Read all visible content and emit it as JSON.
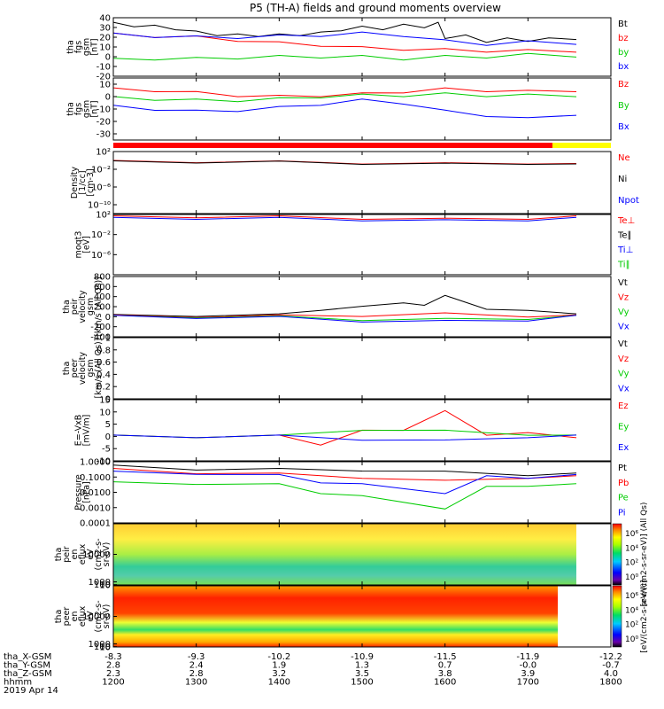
{
  "title": "P5 (TH-A) fields and ground moments overview",
  "colors": {
    "black": "#000000",
    "red": "#ff0000",
    "green": "#00cc00",
    "blue": "#0000ff",
    "yellow": "#ffff00"
  },
  "chart_data": [
    {
      "type": "line",
      "ylabel": [
        "tha",
        "fgs",
        "gsm",
        "[nT]"
      ],
      "ylim": [
        -20,
        40
      ],
      "ticks": [
        40,
        30,
        20,
        10,
        0,
        -10,
        -20
      ],
      "legend": [
        {
          "name": "Bt",
          "color": "#000000"
        },
        {
          "name": "bz",
          "color": "#ff0000"
        },
        {
          "name": "by",
          "color": "#00cc00"
        },
        {
          "name": "bx",
          "color": "#0000ff"
        }
      ],
      "series": [
        {
          "name": "Bt",
          "color": "#000000",
          "x": [
            1200,
            1215,
            1230,
            1245,
            1300,
            1315,
            1330,
            1345,
            1400,
            1415,
            1430,
            1445,
            1500,
            1515,
            1530,
            1545,
            1555,
            1600,
            1615,
            1630,
            1645,
            1700,
            1715,
            1735
          ],
          "y": [
            34,
            32,
            31,
            29,
            25,
            23,
            22,
            22,
            22,
            23,
            24,
            28,
            30,
            29,
            32,
            31,
            34,
            20,
            21,
            16,
            18,
            17,
            18,
            19
          ]
        },
        {
          "name": "bz",
          "color": "#ff0000",
          "x": [
            1200,
            1230,
            1300,
            1330,
            1400,
            1430,
            1500,
            1530,
            1600,
            1630,
            1700,
            1735
          ],
          "y": [
            23,
            21,
            20,
            17,
            14,
            12,
            9,
            8,
            7,
            6,
            6,
            6
          ]
        },
        {
          "name": "by",
          "color": "#00cc00",
          "x": [
            1200,
            1230,
            1300,
            1330,
            1400,
            1430,
            1500,
            1530,
            1600,
            1630,
            1700,
            1735
          ],
          "y": [
            -3,
            -2,
            -2,
            -1,
            0,
            0,
            0,
            -2,
            0,
            0,
            2,
            1
          ]
        },
        {
          "name": "bx",
          "color": "#0000ff",
          "x": [
            1200,
            1230,
            1300,
            1330,
            1400,
            1430,
            1500,
            1530,
            1600,
            1630,
            1700,
            1735
          ],
          "y": [
            23,
            21,
            20,
            20,
            21,
            22,
            24,
            22,
            16,
            13,
            15,
            14
          ]
        }
      ]
    },
    {
      "type": "line",
      "ylabel": [
        "tha",
        "fgs",
        "gsm",
        "[nT]"
      ],
      "ylim": [
        -35,
        15
      ],
      "ticks": [
        10,
        0,
        -10,
        -20,
        -30
      ],
      "legend": [
        {
          "name": "Bz",
          "color": "#ff0000"
        },
        {
          "name": "By",
          "color": "#00cc00"
        },
        {
          "name": "Bx",
          "color": "#0000ff"
        }
      ],
      "series": [
        {
          "name": "Bz",
          "color": "#ff0000",
          "x": [
            1200,
            1230,
            1300,
            1330,
            1400,
            1430,
            1500,
            1530,
            1600,
            1630,
            1700,
            1735
          ],
          "y": [
            6,
            5,
            3,
            1,
            0,
            1,
            2,
            4,
            6,
            5,
            4,
            5
          ]
        },
        {
          "name": "By",
          "color": "#00cc00",
          "x": [
            1200,
            1230,
            1300,
            1330,
            1400,
            1430,
            1500,
            1530,
            1600,
            1630,
            1700,
            1735
          ],
          "y": [
            -1,
            -2,
            -3,
            -3,
            -2,
            0,
            1,
            1,
            2,
            1,
            1,
            1
          ]
        },
        {
          "name": "Bx",
          "color": "#0000ff",
          "x": [
            1200,
            1230,
            1300,
            1330,
            1400,
            1430,
            1500,
            1530,
            1600,
            1630,
            1700,
            1735
          ],
          "y": [
            -8,
            -10,
            -12,
            -11,
            -9,
            -6,
            -3,
            -5,
            -12,
            -15,
            -18,
            -14
          ]
        }
      ]
    },
    {
      "type": "line",
      "scale": "log",
      "ylabel": [
        "Density",
        "[1/cc]",
        "[cm-3]"
      ],
      "ylim": [
        1e-12,
        100
      ],
      "ticks": [
        100,
        0.01,
        1e-06,
        1e-10
      ],
      "tick_labels": [
        "10²",
        "10⁻²",
        "10⁻⁶",
        "10⁻¹⁰"
      ],
      "legend": [
        {
          "name": "Ne",
          "color": "#ff0000"
        },
        {
          "name": "Ni",
          "color": "#000000"
        },
        {
          "name": "Npot",
          "color": "#0000ff"
        }
      ],
      "series": [
        {
          "name": "Ne",
          "color": "#ff0000",
          "x": [
            1200,
            1300,
            1400,
            1500,
            1600,
            1700,
            1735
          ],
          "y": [
            0.5,
            0.6,
            0.4,
            0.3,
            0.15,
            0.3,
            0.1
          ]
        },
        {
          "name": "Ni",
          "color": "#000000",
          "x": [
            1200,
            1300,
            1400,
            1500,
            1600,
            1700,
            1735
          ],
          "y": [
            0.4,
            0.5,
            0.35,
            0.25,
            0.12,
            0.25,
            0.08
          ]
        }
      ]
    },
    {
      "type": "line",
      "scale": "log",
      "ylabel": [
        "moqt3",
        "[eV]"
      ],
      "ylim": [
        1e-10,
        100
      ],
      "ticks": [
        100,
        0.01,
        1e-06
      ],
      "tick_labels": [
        "10²",
        "10⁻²",
        "10⁻⁶"
      ],
      "legend": [
        {
          "name": "Te⊥",
          "color": "#ff0000"
        },
        {
          "name": "Te∥",
          "color": "#000000"
        },
        {
          "name": "Ti⊥",
          "color": "#0000ff"
        },
        {
          "name": "Ti∥",
          "color": "#00cc00"
        }
      ],
      "series": [
        {
          "name": "Te⊥",
          "color": "#ff0000",
          "x": [
            1200,
            1300,
            1400,
            1500,
            1600,
            1700,
            1735
          ],
          "y": [
            30,
            40,
            30,
            20,
            10,
            20,
            30
          ]
        },
        {
          "name": "Ti⊥",
          "color": "#0000ff",
          "x": [
            1200,
            1300,
            1400,
            1500,
            1600,
            1700,
            1735
          ],
          "y": [
            15,
            20,
            15,
            10,
            5,
            10,
            15
          ]
        }
      ]
    },
    {
      "type": "line",
      "ylabel": [
        "tha",
        "peir",
        "velocity",
        "gsm",
        "[km/s (All Qs)]"
      ],
      "ylim": [
        -400,
        800
      ],
      "ticks": [
        800,
        600,
        400,
        200,
        0,
        -200,
        -400
      ],
      "legend": [
        {
          "name": "Vt",
          "color": "#000000"
        },
        {
          "name": "Vz",
          "color": "#ff0000"
        },
        {
          "name": "Vy",
          "color": "#00cc00"
        },
        {
          "name": "Vx",
          "color": "#0000ff"
        }
      ],
      "series": [
        {
          "name": "Vt",
          "color": "#000000",
          "x": [
            1200,
            1300,
            1400,
            1430,
            1500,
            1530,
            1545,
            1600,
            1630,
            1700,
            1735
          ],
          "y": [
            20,
            30,
            30,
            150,
            180,
            300,
            200,
            450,
            120,
            150,
            30
          ]
        },
        {
          "name": "Vz",
          "color": "#ff0000",
          "x": [
            1200,
            1300,
            1400,
            1500,
            1600,
            1700,
            1735
          ],
          "y": [
            10,
            10,
            10,
            30,
            50,
            20,
            10
          ]
        },
        {
          "name": "Vy",
          "color": "#00cc00",
          "x": [
            1200,
            1300,
            1400,
            1500,
            1600,
            1700,
            1735
          ],
          "y": [
            0,
            0,
            -10,
            -50,
            -60,
            -30,
            0
          ]
        },
        {
          "name": "Vx",
          "color": "#0000ff",
          "x": [
            1200,
            1300,
            1400,
            1500,
            1600,
            1700,
            1735
          ],
          "y": [
            0,
            -10,
            -20,
            -80,
            -100,
            -60,
            0
          ]
        }
      ]
    },
    {
      "type": "line",
      "ylabel": [
        "tha",
        "peer",
        "velocity",
        "gsm",
        "[km/s (All Qs)]"
      ],
      "ylim": [
        0,
        1
      ],
      "ticks": [
        1.0,
        0.8,
        0.6,
        0.4,
        0.2,
        0.0
      ],
      "legend": [
        {
          "name": "Vt",
          "color": "#000000"
        },
        {
          "name": "Vz",
          "color": "#ff0000"
        },
        {
          "name": "Vy",
          "color": "#00cc00"
        },
        {
          "name": "Vx",
          "color": "#0000ff"
        }
      ],
      "series": []
    },
    {
      "type": "line",
      "ylabel": [
        "E=-VxB",
        "[mV/m]"
      ],
      "ylim": [
        -10,
        15
      ],
      "ticks": [
        15,
        10,
        5,
        0,
        -5,
        -10
      ],
      "legend": [
        {
          "name": "Ez",
          "color": "#ff0000"
        },
        {
          "name": "Ey",
          "color": "#00cc00"
        },
        {
          "name": "Ex",
          "color": "#0000ff"
        }
      ],
      "series": [
        {
          "name": "Ez",
          "color": "#ff0000",
          "x": [
            1200,
            1300,
            1400,
            1430,
            1500,
            1530,
            1600,
            1630,
            1700,
            1735
          ],
          "y": [
            0,
            0,
            0,
            -3,
            2,
            3,
            10,
            1,
            1,
            0
          ]
        },
        {
          "name": "Ey",
          "color": "#00cc00",
          "x": [
            1200,
            1300,
            1400,
            1500,
            1600,
            1700,
            1735
          ],
          "y": [
            0,
            0,
            0,
            3,
            2,
            1,
            0
          ]
        },
        {
          "name": "Ex",
          "color": "#0000ff",
          "x": [
            1200,
            1300,
            1400,
            1500,
            1600,
            1700,
            1735
          ],
          "y": [
            0,
            0,
            0,
            -1,
            -2,
            0,
            0
          ]
        }
      ]
    },
    {
      "type": "line",
      "scale": "log",
      "ylabel": [
        "Pressure",
        "[nPa]"
      ],
      "ylim": [
        0.0001,
        1
      ],
      "ticks": [
        1,
        0.1,
        0.01,
        0.001,
        0.0001
      ],
      "tick_labels": [
        "1.0000",
        "0.1000",
        "0.0100",
        "0.0010",
        "0.0001"
      ],
      "legend": [
        {
          "name": "Pt",
          "color": "#000000"
        },
        {
          "name": "Pb",
          "color": "#ff0000"
        },
        {
          "name": "Pe",
          "color": "#00cc00"
        },
        {
          "name": "Pi",
          "color": "#0000ff"
        }
      ],
      "series": [
        {
          "name": "Pt",
          "color": "#000000",
          "x": [
            1200,
            1300,
            1400,
            1500,
            1600,
            1700,
            1735
          ],
          "y": [
            0.5,
            0.35,
            0.3,
            0.3,
            0.2,
            0.15,
            0.15
          ]
        },
        {
          "name": "Pb",
          "color": "#ff0000",
          "x": [
            1200,
            1300,
            1400,
            1500,
            1600,
            1700,
            1735
          ],
          "y": [
            0.3,
            0.2,
            0.15,
            0.1,
            0.05,
            0.1,
            0.1
          ]
        },
        {
          "name": "Pe",
          "color": "#00cc00",
          "x": [
            1200,
            1300,
            1400,
            1430,
            1500,
            1600,
            1630,
            1700,
            1735
          ],
          "y": [
            0.04,
            0.04,
            0.03,
            0.01,
            0.005,
            0.001,
            0.02,
            0.03,
            0.03
          ]
        },
        {
          "name": "Pi",
          "color": "#0000ff",
          "x": [
            1200,
            1300,
            1400,
            1430,
            1500,
            1600,
            1630,
            1700,
            1735
          ],
          "y": [
            0.2,
            0.18,
            0.12,
            0.05,
            0.03,
            0.01,
            0.1,
            0.1,
            0.12
          ]
        }
      ]
    },
    {
      "type": "heatmap",
      "ylabel": [
        "tha",
        "peir",
        "en",
        "eflux",
        "eV",
        "(cm2-s-",
        "sr-eV)"
      ],
      "ylim": [
        5,
        20000
      ],
      "ticks": [
        10000,
        1000,
        100,
        10
      ],
      "colorbar_ticks": [
        "10⁶",
        "10⁴",
        "10²",
        "10⁰"
      ],
      "colorbar_label": "[eV/(cm2-s-sr-eV)] (All Qs)"
    },
    {
      "type": "heatmap",
      "ylabel": [
        "tha",
        "peer",
        "en",
        "eflux",
        "eV",
        "(cm2-s-",
        "sr-eV)"
      ],
      "ylim": [
        5,
        20000
      ],
      "ticks": [
        10000,
        1000,
        100,
        10
      ],
      "colorbar_ticks": [
        "10⁶",
        "10⁴",
        "10²",
        "10⁰"
      ],
      "colorbar_label": "[eV/(cm2-s-sr-eV)]"
    }
  ],
  "xaxis": {
    "times": [
      1200,
      1300,
      1400,
      1500,
      1600,
      1700,
      1800
    ],
    "row_labels": [
      "tha_X-GSM",
      "tha_Y-GSM",
      "tha_Z-GSM",
      "hhmm",
      "2019 Apr 14"
    ],
    "rows": [
      [
        "-8.3",
        "-9.3",
        "-10.2",
        "-10.9",
        "-11.5",
        "-11.9",
        "-12.2"
      ],
      [
        "2.8",
        "2.4",
        "1.9",
        "1.3",
        "0.7",
        "-0.0",
        "-0.7"
      ],
      [
        "2.3",
        "2.8",
        "3.2",
        "3.5",
        "3.8",
        "3.9",
        "4.0"
      ],
      [
        "1200",
        "1300",
        "1400",
        "1500",
        "1600",
        "1700",
        "1800"
      ]
    ]
  }
}
